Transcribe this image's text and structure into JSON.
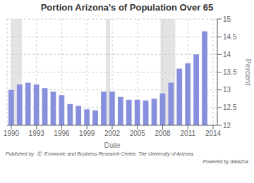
{
  "chart_data": {
    "type": "bar",
    "title": "Portion Arizona's of Population Over 65",
    "xlabel": "Date",
    "ylabel": "Percent",
    "x": [
      1990,
      1991,
      1992,
      1993,
      1994,
      1995,
      1996,
      1997,
      1998,
      1999,
      2000,
      2001,
      2002,
      2003,
      2004,
      2005,
      2006,
      2007,
      2008,
      2009,
      2010,
      2011,
      2012,
      2013
    ],
    "values": [
      13.0,
      13.15,
      13.2,
      13.15,
      13.05,
      12.95,
      12.85,
      12.6,
      12.55,
      12.45,
      12.42,
      12.95,
      12.95,
      12.8,
      12.72,
      12.72,
      12.7,
      12.75,
      12.9,
      13.2,
      13.6,
      13.75,
      14.0,
      14.65
    ],
    "color": "#8890dd",
    "xlim": [
      1989.5,
      2014.5
    ],
    "xticks": [
      1990,
      1993,
      1996,
      1999,
      2002,
      2005,
      2008,
      2011,
      2014
    ],
    "ylim": [
      12,
      15
    ],
    "yticks": [
      12,
      12.5,
      13,
      13.5,
      14,
      14.5,
      15
    ],
    "grid": true,
    "bands": [
      [
        1990.0,
        1991.25
      ],
      [
        2001.25,
        2001.75
      ],
      [
        2007.75,
        2009.5
      ]
    ],
    "band_color": "#cccccc",
    "annotations": [
      "Published by  Ⓔ  Economic and Business Research Center, The University of Arizona.",
      "Powered by dataZoa"
    ]
  }
}
